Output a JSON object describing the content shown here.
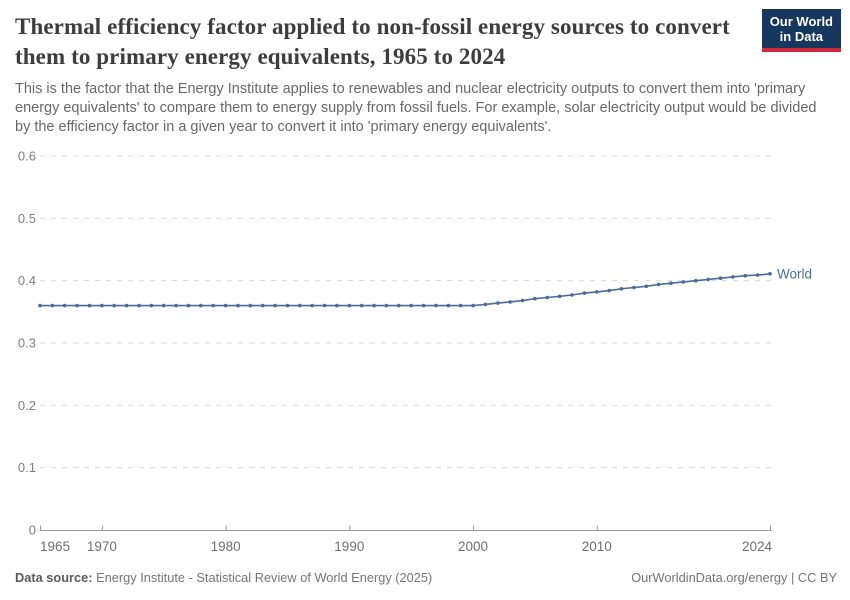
{
  "header": {
    "title": "Thermal efficiency factor applied to non-fossil energy sources to convert them to primary energy equivalents, 1965 to 2024",
    "subtitle": "This is the factor that the Energy Institute applies to renewables and nuclear electricity outputs to convert them into 'primary energy equivalents' to compare them to energy supply from fossil fuels. For example, solar electricity output would be divided by the efficiency factor in a given year to convert it into 'primary energy equivalents'."
  },
  "logo": {
    "line1": "Our World",
    "line2": "in Data",
    "bg_color": "#18375f",
    "accent_color": "#cf2a3c"
  },
  "chart_data": {
    "type": "line",
    "title": "Thermal efficiency factor applied to non-fossil energy sources to convert them to primary energy equivalents",
    "xlabel": "",
    "ylabel": "",
    "ylim": [
      0,
      0.6
    ],
    "yticks": [
      0,
      0.1,
      0.2,
      0.3,
      0.4,
      0.5,
      0.6
    ],
    "xticks": [
      1965,
      1970,
      1980,
      1990,
      2000,
      2010,
      2024
    ],
    "grid": "horizontal-dashed",
    "legend_position": "end-of-line-label",
    "grid_color": "#dadada",
    "axis_color": "#9a9a9a",
    "tick_label_color": "#7e7e7e",
    "x": [
      1965,
      1966,
      1967,
      1968,
      1969,
      1970,
      1971,
      1972,
      1973,
      1974,
      1975,
      1976,
      1977,
      1978,
      1979,
      1980,
      1981,
      1982,
      1983,
      1984,
      1985,
      1986,
      1987,
      1988,
      1989,
      1990,
      1991,
      1992,
      1993,
      1994,
      1995,
      1996,
      1997,
      1998,
      1999,
      2000,
      2001,
      2002,
      2003,
      2004,
      2005,
      2006,
      2007,
      2008,
      2009,
      2010,
      2011,
      2012,
      2013,
      2014,
      2015,
      2016,
      2017,
      2018,
      2019,
      2020,
      2021,
      2022,
      2023,
      2024
    ],
    "series": [
      {
        "name": "World",
        "color": "#4c6a9c",
        "values": [
          0.36,
          0.36,
          0.36,
          0.36,
          0.36,
          0.36,
          0.36,
          0.36,
          0.36,
          0.36,
          0.36,
          0.36,
          0.36,
          0.36,
          0.36,
          0.36,
          0.36,
          0.36,
          0.36,
          0.36,
          0.36,
          0.36,
          0.36,
          0.36,
          0.36,
          0.36,
          0.36,
          0.36,
          0.36,
          0.36,
          0.36,
          0.36,
          0.36,
          0.36,
          0.36,
          0.36,
          0.362,
          0.364,
          0.366,
          0.368,
          0.371,
          0.373,
          0.375,
          0.377,
          0.38,
          0.382,
          0.384,
          0.387,
          0.389,
          0.391,
          0.394,
          0.396,
          0.398,
          0.4,
          0.402,
          0.404,
          0.406,
          0.408,
          0.409,
          0.411
        ]
      }
    ]
  },
  "footer": {
    "source_label": "Data source:",
    "source_text": "Energy Institute - Statistical Review of World Energy (2025)",
    "credit": "OurWorldinData.org/energy | CC BY"
  }
}
